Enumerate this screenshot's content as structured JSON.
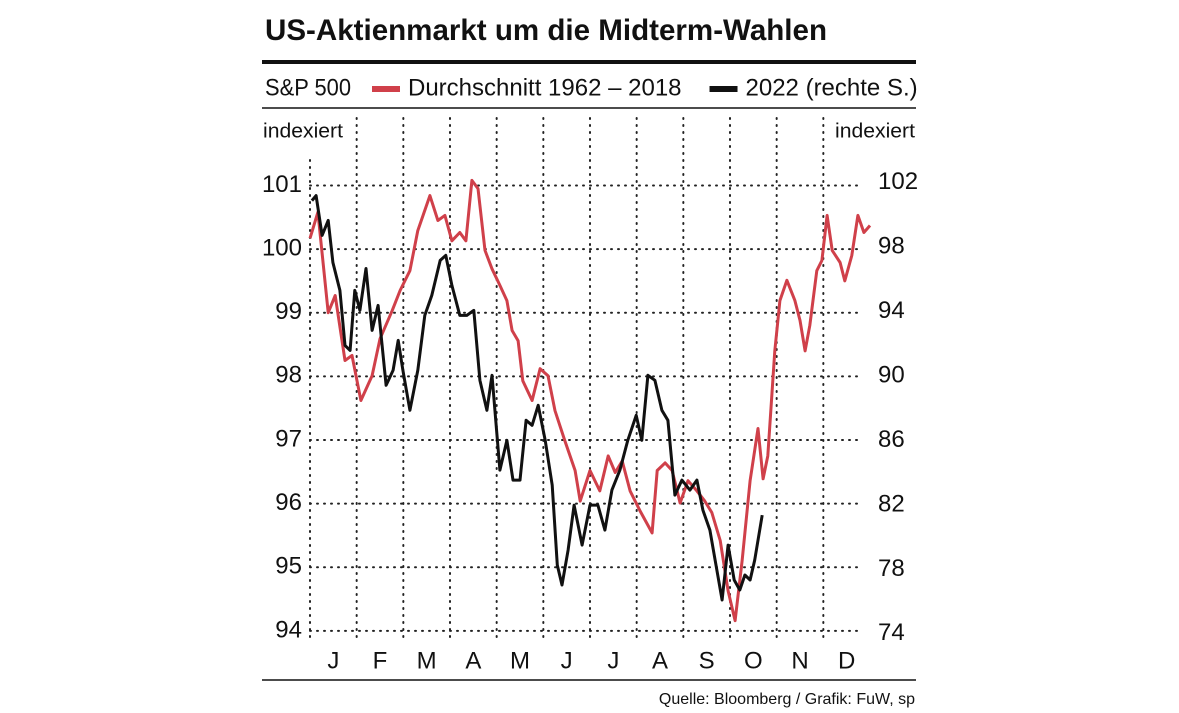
{
  "chart_data": {
    "type": "line",
    "title": "US-Aktienmarkt um die Midterm-Wahlen",
    "subtitle": "S&P 500",
    "ylabel": "indexiert",
    "y2label": "indexiert",
    "source": "Quelle: Bloomberg / Grafik: FuW, sp",
    "xlim": [
      0,
      12
    ],
    "xticks": [
      {
        "value": 0.5,
        "label": "J"
      },
      {
        "value": 1.5,
        "label": "F"
      },
      {
        "value": 2.5,
        "label": "M"
      },
      {
        "value": 3.5,
        "label": "A"
      },
      {
        "value": 4.5,
        "label": "M"
      },
      {
        "value": 5.5,
        "label": "J"
      },
      {
        "value": 6.5,
        "label": "J"
      },
      {
        "value": 7.5,
        "label": "A"
      },
      {
        "value": 8.5,
        "label": "S"
      },
      {
        "value": 9.5,
        "label": "O"
      },
      {
        "value": 10.5,
        "label": "N"
      },
      {
        "value": 11.5,
        "label": "D"
      }
    ],
    "ylim": [
      93.7,
      101.4
    ],
    "yticks": [
      94,
      95,
      96,
      97,
      98,
      99,
      100,
      101
    ],
    "y2lim": [
      73,
      103.4
    ],
    "y2ticks": [
      74,
      78,
      82,
      86,
      90,
      94,
      98,
      102
    ],
    "grid": true,
    "series": [
      {
        "name": "Durchschnitt 1962 – 2018",
        "color": "#d0404a",
        "x": [
          0.0,
          0.17,
          0.39,
          0.54,
          0.75,
          0.9,
          1.09,
          1.33,
          1.5,
          1.76,
          1.93,
          2.14,
          2.31,
          2.57,
          2.74,
          2.89,
          3.04,
          3.21,
          3.34,
          3.47,
          3.6,
          3.75,
          3.9,
          4.07,
          4.22,
          4.33,
          4.46,
          4.56,
          4.76,
          4.93,
          5.1,
          5.25,
          5.46,
          5.68,
          5.79,
          6.0,
          6.21,
          6.39,
          6.54,
          6.69,
          6.86,
          7.07,
          7.33,
          7.44,
          7.61,
          7.76,
          7.93,
          8.1,
          8.29,
          8.46,
          8.61,
          8.79,
          8.96,
          9.11,
          9.26,
          9.43,
          9.6,
          9.71,
          9.81,
          9.96,
          10.07,
          10.22,
          10.39,
          10.5,
          10.61,
          10.71,
          10.86,
          10.97,
          11.08,
          11.19,
          11.36,
          11.46,
          11.61,
          11.74,
          11.87,
          12.0
        ],
        "values": [
          100.17,
          100.58,
          99.0,
          99.27,
          98.25,
          98.33,
          97.62,
          98.01,
          98.59,
          99.03,
          99.35,
          99.66,
          100.29,
          100.84,
          100.45,
          100.53,
          100.13,
          100.26,
          100.13,
          101.08,
          100.95,
          99.98,
          99.69,
          99.43,
          99.19,
          98.72,
          98.56,
          97.93,
          97.62,
          98.12,
          98.01,
          97.46,
          96.99,
          96.52,
          96.04,
          96.52,
          96.2,
          96.75,
          96.49,
          96.67,
          96.2,
          95.89,
          95.54,
          96.52,
          96.64,
          96.52,
          96.01,
          96.36,
          96.2,
          96.04,
          95.86,
          95.42,
          94.63,
          94.16,
          95.1,
          96.36,
          97.18,
          96.39,
          96.75,
          98.4,
          99.19,
          99.51,
          99.19,
          98.88,
          98.4,
          98.8,
          99.66,
          99.82,
          100.53,
          99.98,
          99.79,
          99.5,
          99.9,
          100.53,
          100.26,
          100.37
        ]
      },
      {
        "name": "2022 (rechte S.)",
        "color": "#111111",
        "axis": "y2",
        "x": [
          0.04,
          0.13,
          0.26,
          0.39,
          0.49,
          0.64,
          0.75,
          0.86,
          0.96,
          1.07,
          1.2,
          1.33,
          1.46,
          1.63,
          1.78,
          1.89,
          1.99,
          2.14,
          2.31,
          2.46,
          2.61,
          2.79,
          2.91,
          3.04,
          3.21,
          3.36,
          3.51,
          3.64,
          3.79,
          3.9,
          4.07,
          4.22,
          4.35,
          4.5,
          4.63,
          4.76,
          4.89,
          5.04,
          5.19,
          5.3,
          5.4,
          5.53,
          5.66,
          5.83,
          6.0,
          6.17,
          6.32,
          6.47,
          6.64,
          6.81,
          6.99,
          7.11,
          7.24,
          7.39,
          7.54,
          7.67,
          7.82,
          7.97,
          8.14,
          8.29,
          8.42,
          8.57,
          8.7,
          8.83,
          8.96,
          9.09,
          9.21,
          9.32,
          9.43,
          9.53,
          9.69
        ],
        "values": [
          100.88,
          101.19,
          98.72,
          99.65,
          97.04,
          95.31,
          91.9,
          91.59,
          95.31,
          94.07,
          96.67,
          92.83,
          94.38,
          89.42,
          90.35,
          92.21,
          90.35,
          87.87,
          90.35,
          93.76,
          95.0,
          97.17,
          97.48,
          95.62,
          93.76,
          93.76,
          94.07,
          89.73,
          87.87,
          90.04,
          84.16,
          86.01,
          83.54,
          83.54,
          87.25,
          86.94,
          88.18,
          86.01,
          83.23,
          78.27,
          77.03,
          79.2,
          81.99,
          79.51,
          81.99,
          81.99,
          80.44,
          82.92,
          84.16,
          86.01,
          87.56,
          86.01,
          90.04,
          89.73,
          87.87,
          87.25,
          82.61,
          83.54,
          82.92,
          83.54,
          81.68,
          80.44,
          78.27,
          76.1,
          79.51,
          77.34,
          76.72,
          77.65,
          77.34,
          78.58,
          81.37
        ]
      }
    ]
  }
}
